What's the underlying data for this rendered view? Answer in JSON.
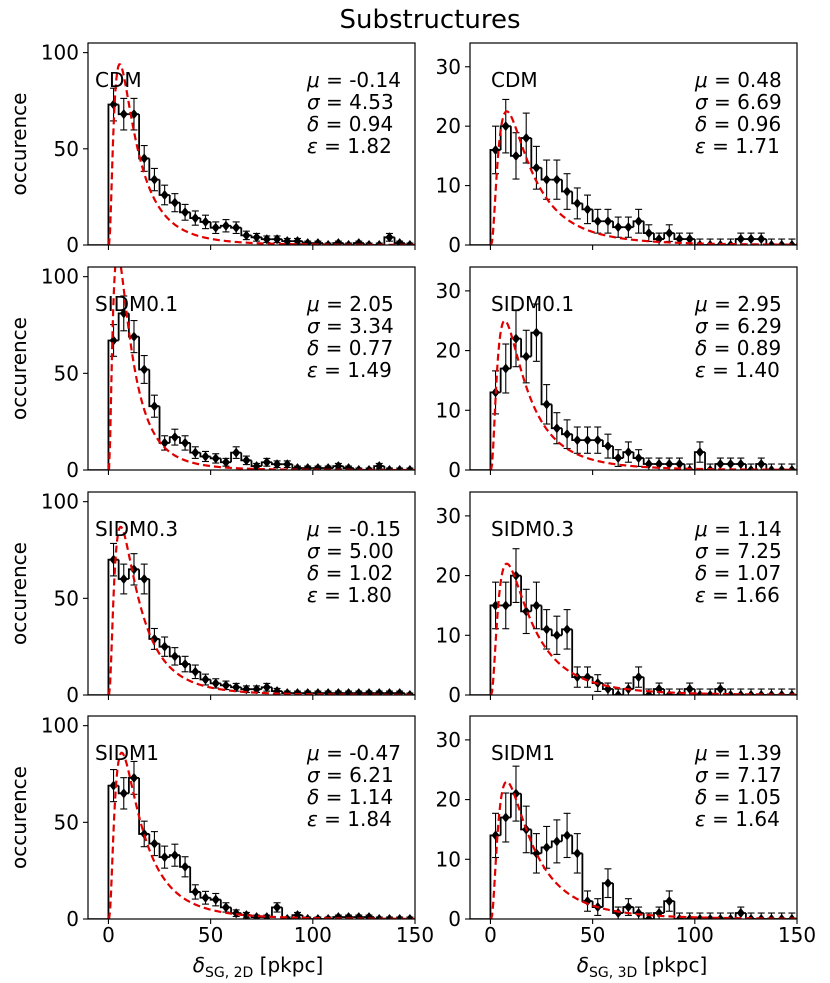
{
  "figure": {
    "title": "Substructures",
    "ylabel": "occurence",
    "xlabel_left": {
      "main": "δ",
      "sub": "SG, 2D",
      "tail": " [pkpc]"
    },
    "xlabel_right": {
      "main": "δ",
      "sub": "SG, 3D",
      "tail": " [pkpc]"
    },
    "fit_color": "#e00000",
    "hist_color": "#000000"
  },
  "chart_data": [
    {
      "type": "bar",
      "panel": "CDM-2D",
      "label": "CDM",
      "xlim": [
        -10,
        150
      ],
      "ylim": [
        0,
        105
      ],
      "xticks": [
        0,
        50,
        100,
        150
      ],
      "yticks": [
        0,
        50,
        100
      ],
      "bin_width": 5,
      "values": [
        73,
        68,
        68,
        45,
        34,
        26,
        22,
        17,
        14,
        12,
        9,
        10,
        9,
        5,
        4,
        3,
        3,
        2,
        2,
        1,
        1,
        0,
        1,
        0,
        1,
        0,
        0,
        4,
        1,
        0
      ],
      "errors": [
        8.5,
        8.2,
        8.2,
        6.7,
        5.8,
        5.1,
        4.7,
        4.1,
        3.7,
        3.5,
        3,
        3.2,
        3,
        2.2,
        2,
        1.7,
        1.7,
        1.4,
        1.4,
        1,
        1,
        1,
        1,
        1,
        1,
        1,
        1,
        2,
        1,
        1
      ],
      "fit": {
        "peak_x": 5.5,
        "peak_y": 94,
        "params": {
          "mu": "-0.14",
          "sigma": "4.53",
          "delta": "0.94",
          "epsilon": "1.82"
        }
      }
    },
    {
      "type": "bar",
      "panel": "CDM-3D",
      "label": "CDM",
      "xlim": [
        -10,
        150
      ],
      "ylim": [
        0,
        34
      ],
      "xticks": [
        0,
        50,
        100,
        150
      ],
      "yticks": [
        0,
        10,
        20,
        30
      ],
      "bin_width": 5,
      "values": [
        16,
        20,
        15,
        18,
        13,
        11,
        11,
        9,
        7,
        6,
        4,
        4,
        3,
        3,
        4,
        2,
        1,
        2,
        1,
        1,
        0,
        0,
        0,
        0,
        1,
        1,
        1,
        0,
        0,
        0
      ],
      "errors": [
        4,
        4.5,
        3.9,
        4.2,
        3.6,
        3.3,
        3.3,
        3,
        2.6,
        2.4,
        2,
        2,
        1.7,
        1.7,
        2,
        1.4,
        1,
        1.4,
        1,
        1,
        1,
        1,
        1,
        1,
        1,
        1,
        1,
        1,
        1,
        1
      ],
      "fit": {
        "peak_x": 8,
        "peak_y": 22.5,
        "params": {
          "mu": "0.48",
          "sigma": "6.69",
          "delta": "0.96",
          "epsilon": "1.71"
        }
      }
    },
    {
      "type": "bar",
      "panel": "SIDM0.1-2D",
      "label": "SIDM0.1",
      "xlim": [
        -10,
        150
      ],
      "ylim": [
        0,
        105
      ],
      "xticks": [
        0,
        50,
        100,
        150
      ],
      "yticks": [
        0,
        50,
        100
      ],
      "bin_width": 5,
      "values": [
        67,
        81,
        69,
        52,
        33,
        14,
        17,
        14,
        9,
        7,
        6,
        4,
        9,
        5,
        2,
        4,
        3,
        3,
        1,
        1,
        1,
        1,
        2,
        1,
        0,
        0,
        2,
        0,
        0,
        0
      ],
      "errors": [
        8.2,
        9,
        8.3,
        7.2,
        5.7,
        3.7,
        4.1,
        3.7,
        3,
        2.6,
        2.4,
        2,
        3,
        2.2,
        1.4,
        2,
        1.7,
        1.7,
        1,
        1,
        1,
        1,
        1.4,
        1,
        1,
        1,
        1.4,
        1,
        1,
        1
      ],
      "fit": {
        "peak_x": 4.5,
        "peak_y": 112,
        "params": {
          "mu": "2.05",
          "sigma": "3.34",
          "delta": "0.77",
          "epsilon": "1.49"
        }
      }
    },
    {
      "type": "bar",
      "panel": "SIDM0.1-3D",
      "label": "SIDM0.1",
      "xlim": [
        -10,
        150
      ],
      "ylim": [
        0,
        34
      ],
      "xticks": [
        0,
        50,
        100,
        150
      ],
      "yticks": [
        0,
        10,
        20,
        30
      ],
      "bin_width": 5,
      "values": [
        13,
        17,
        22,
        19,
        23,
        11,
        7,
        6,
        5,
        5,
        5,
        4,
        2,
        3,
        2,
        1,
        1,
        1,
        1,
        0,
        3,
        0,
        1,
        1,
        1,
        0,
        1,
        0,
        0,
        0
      ],
      "errors": [
        3.6,
        4.1,
        4.7,
        4.4,
        4.8,
        3.3,
        2.6,
        2.4,
        2.2,
        2.2,
        2.2,
        2,
        1.4,
        1.7,
        1.4,
        1,
        1,
        1,
        1,
        1,
        1.7,
        1,
        1,
        1,
        1,
        1,
        1,
        1,
        1,
        1
      ],
      "fit": {
        "peak_x": 7,
        "peak_y": 25,
        "params": {
          "mu": "2.95",
          "sigma": "6.29",
          "delta": "0.89",
          "epsilon": "1.40"
        }
      }
    },
    {
      "type": "bar",
      "panel": "SIDM0.3-2D",
      "label": "SIDM0.3",
      "xlim": [
        -10,
        150
      ],
      "ylim": [
        0,
        105
      ],
      "xticks": [
        0,
        50,
        100,
        150
      ],
      "yticks": [
        0,
        50,
        100
      ],
      "bin_width": 5,
      "values": [
        70,
        60,
        65,
        60,
        29,
        25,
        20,
        16,
        12,
        8,
        6,
        5,
        4,
        3,
        3,
        4,
        2,
        1,
        1,
        1,
        1,
        1,
        1,
        1,
        1,
        1,
        1,
        1,
        1,
        0
      ],
      "errors": [
        8.4,
        7.7,
        8.1,
        7.7,
        5.4,
        5,
        4.5,
        4,
        3.5,
        2.8,
        2.4,
        2.2,
        2,
        1.7,
        1.7,
        2,
        1.4,
        1,
        1,
        1,
        1,
        1,
        1,
        1,
        1,
        1,
        1,
        1,
        1,
        1
      ],
      "fit": {
        "peak_x": 6,
        "peak_y": 87,
        "params": {
          "mu": "-0.15",
          "sigma": "5.00",
          "delta": "1.02",
          "epsilon": "1.80"
        }
      }
    },
    {
      "type": "bar",
      "panel": "SIDM0.3-3D",
      "label": "SIDM0.3",
      "xlim": [
        -10,
        150
      ],
      "ylim": [
        0,
        34
      ],
      "xticks": [
        0,
        50,
        100,
        150
      ],
      "yticks": [
        0,
        10,
        20,
        30
      ],
      "bin_width": 5,
      "values": [
        15,
        15,
        20,
        14,
        15,
        11,
        10,
        11,
        3,
        3,
        2,
        1,
        0,
        1,
        3,
        0,
        1,
        0,
        0,
        1,
        0,
        0,
        1,
        0,
        0,
        0,
        0,
        0,
        0,
        0
      ],
      "errors": [
        3.9,
        3.9,
        4.5,
        3.7,
        3.9,
        3.3,
        3.2,
        3.3,
        1.7,
        1.7,
        1.4,
        1,
        1,
        1,
        1.7,
        1,
        1,
        1,
        1,
        1,
        1,
        1,
        1,
        1,
        1,
        1,
        1,
        1,
        1,
        1
      ],
      "fit": {
        "peak_x": 8,
        "peak_y": 22,
        "params": {
          "mu": "1.14",
          "sigma": "7.25",
          "delta": "1.07",
          "epsilon": "1.66"
        }
      }
    },
    {
      "type": "bar",
      "panel": "SIDM1-2D",
      "label": "SIDM1",
      "xlim": [
        -10,
        150
      ],
      "ylim": [
        0,
        105
      ],
      "xticks": [
        0,
        50,
        100,
        150
      ],
      "yticks": [
        0,
        50,
        100
      ],
      "bin_width": 5,
      "values": [
        69,
        65,
        73,
        44,
        39,
        32,
        33,
        27,
        14,
        11,
        10,
        6,
        3,
        2,
        1,
        1,
        6,
        0,
        2,
        0,
        0,
        0,
        1,
        1,
        1,
        1,
        0,
        0,
        0,
        0
      ],
      "errors": [
        8.3,
        8.1,
        8.5,
        6.6,
        6.2,
        5.7,
        5.7,
        5.2,
        3.7,
        3.3,
        3.2,
        2.4,
        1.7,
        1.4,
        1,
        1,
        2.4,
        1,
        1.4,
        1,
        1,
        1,
        1,
        1,
        1,
        1,
        1,
        1,
        1,
        1
      ],
      "fit": {
        "peak_x": 6.5,
        "peak_y": 86,
        "params": {
          "mu": "-0.47",
          "sigma": "6.21",
          "delta": "1.14",
          "epsilon": "1.84"
        }
      }
    },
    {
      "type": "bar",
      "panel": "SIDM1-3D",
      "label": "SIDM1",
      "xlim": [
        -10,
        150
      ],
      "ylim": [
        0,
        34
      ],
      "xticks": [
        0,
        50,
        100,
        150
      ],
      "yticks": [
        0,
        10,
        20,
        30
      ],
      "bin_width": 5,
      "values": [
        14,
        17,
        21,
        15,
        11,
        12,
        13,
        14,
        11,
        3,
        2,
        6,
        1,
        2,
        1,
        0,
        1,
        3,
        0,
        0,
        0,
        0,
        0,
        0,
        1,
        0,
        0,
        0,
        0,
        0
      ],
      "errors": [
        3.7,
        4.1,
        4.6,
        3.9,
        3.3,
        3.5,
        3.6,
        3.7,
        3.3,
        1.7,
        1.4,
        2.4,
        1,
        1.4,
        1,
        1,
        1,
        1.7,
        1,
        1,
        1,
        1,
        1,
        1,
        1,
        1,
        1,
        1,
        1,
        1
      ],
      "fit": {
        "peak_x": 8,
        "peak_y": 23,
        "params": {
          "mu": "1.39",
          "sigma": "7.17",
          "delta": "1.05",
          "epsilon": "1.64"
        }
      }
    }
  ]
}
